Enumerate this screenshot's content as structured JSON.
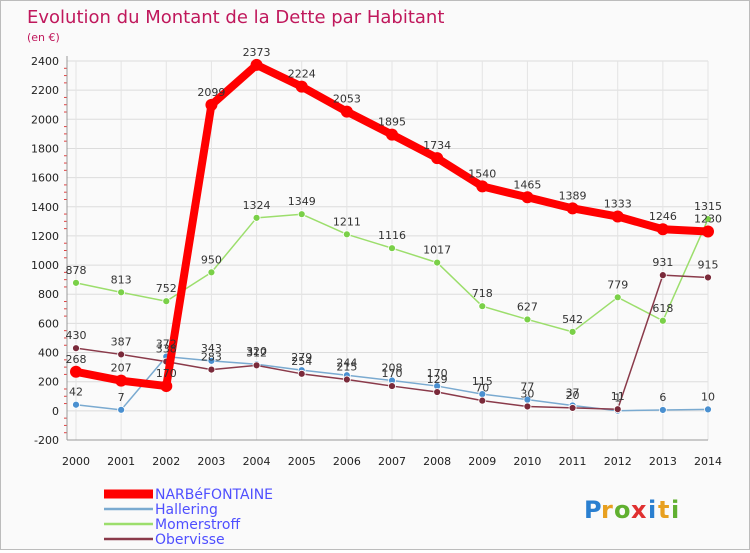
{
  "chart_data": {
    "type": "line",
    "title": "Evolution du Montant de la Dette par Habitant",
    "subtitle": "(en €)",
    "ylim": [
      -200,
      2400
    ],
    "yticks": [
      -200,
      0,
      200,
      400,
      600,
      800,
      1000,
      1200,
      1400,
      1600,
      1800,
      2000,
      2200,
      2400
    ],
    "categories": [
      "2000",
      "2001",
      "2002",
      "2003",
      "2004",
      "2005",
      "2006",
      "2007",
      "2008",
      "2009",
      "2010",
      "2011",
      "2012",
      "2013",
      "2014"
    ],
    "legend_position": "bottom-left",
    "series": [
      {
        "name": "NARBéFONTAINE",
        "color": "#ff0000",
        "marker": "#ff0000",
        "width": "thick",
        "values": [
          268,
          207,
          170,
          2099,
          2373,
          2224,
          2053,
          1895,
          1734,
          1540,
          1465,
          1389,
          1333,
          1246,
          1230
        ]
      },
      {
        "name": "Hallering",
        "color": "#7aaad0",
        "marker": "#4a90d0",
        "width": "thin",
        "values": [
          42,
          7,
          372,
          343,
          320,
          279,
          244,
          208,
          170,
          115,
          77,
          37,
          1,
          6,
          10
        ]
      },
      {
        "name": "Momerstroff",
        "color": "#9cde6c",
        "marker": "#7ad048",
        "width": "thin",
        "values": [
          878,
          813,
          752,
          950,
          1324,
          1349,
          1211,
          1116,
          1017,
          718,
          627,
          542,
          779,
          618,
          1315
        ]
      },
      {
        "name": "Obervisse",
        "color": "#8a3a4a",
        "marker": "#7a2a3a",
        "width": "thin",
        "values": [
          430,
          387,
          338,
          283,
          312,
          254,
          215,
          170,
          129,
          70,
          30,
          20,
          11,
          931,
          915
        ]
      }
    ]
  },
  "brand": {
    "name": "Proxiti",
    "letters": [
      "P",
      "r",
      "o",
      "x",
      "i",
      "t",
      "i"
    ]
  }
}
